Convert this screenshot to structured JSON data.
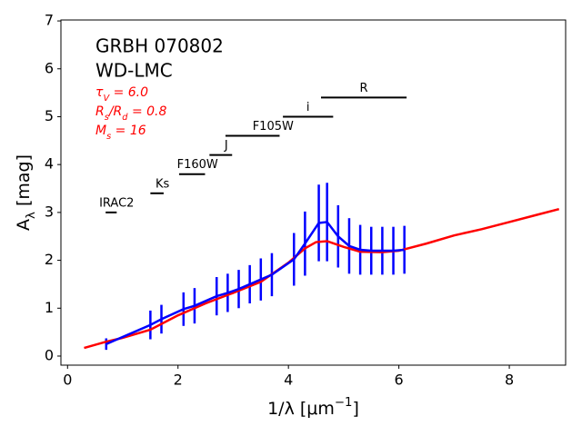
{
  "chart_data": {
    "type": "line",
    "title_lines": [
      "GRBH 070802",
      "WD-LMC"
    ],
    "parameters": [
      [
        "τ",
        "V",
        " = 6.0"
      ],
      [
        "R",
        "s",
        "/R",
        "d",
        " = 0.8"
      ],
      [
        "M",
        "s",
        " = 16"
      ]
    ],
    "parameter_color": "#ff0000",
    "ylabel": [
      "A",
      "λ",
      " [mag]"
    ],
    "xlabel": [
      "1/λ [μm",
      "−1",
      "]"
    ],
    "xlim": [
      -0.12,
      9.02
    ],
    "ylim": [
      -0.19,
      7.02
    ],
    "xticks": [
      0,
      2,
      4,
      6,
      8
    ],
    "yticks": [
      0,
      1,
      2,
      3,
      4,
      5,
      6,
      7
    ],
    "grid": false,
    "model": {
      "color": "#ff0000",
      "x": [
        0.3,
        0.7,
        1.0,
        1.5,
        2.0,
        2.5,
        3.0,
        3.5,
        4.0,
        4.3,
        4.5,
        4.7,
        5.0,
        5.3,
        5.7,
        6.0,
        6.5,
        7.0,
        7.5,
        8.0,
        8.5,
        8.9
      ],
      "values": [
        0.17,
        0.3,
        0.38,
        0.55,
        0.85,
        1.1,
        1.32,
        1.55,
        1.95,
        2.25,
        2.38,
        2.4,
        2.28,
        2.18,
        2.17,
        2.2,
        2.35,
        2.52,
        2.65,
        2.8,
        2.95,
        3.07
      ]
    },
    "data": {
      "color": "#0000ff",
      "x": [
        0.7,
        1.5,
        1.7,
        2.1,
        2.3,
        2.7,
        2.9,
        3.1,
        3.3,
        3.5,
        3.7,
        4.1,
        4.3,
        4.55,
        4.7,
        4.9,
        5.1,
        5.3,
        5.5,
        5.7,
        5.9,
        6.1
      ],
      "values": [
        0.25,
        0.65,
        0.77,
        0.98,
        1.05,
        1.25,
        1.32,
        1.4,
        1.5,
        1.6,
        1.7,
        2.02,
        2.35,
        2.78,
        2.8,
        2.5,
        2.3,
        2.22,
        2.2,
        2.2,
        2.2,
        2.22
      ],
      "errors": [
        0.12,
        0.3,
        0.3,
        0.35,
        0.37,
        0.4,
        0.4,
        0.4,
        0.4,
        0.44,
        0.45,
        0.55,
        0.67,
        0.8,
        0.82,
        0.65,
        0.58,
        0.52,
        0.5,
        0.5,
        0.5,
        0.5
      ]
    },
    "filters": [
      {
        "name": "IRAC2",
        "range": [
          0.69,
          0.89
        ],
        "value": 3.0
      },
      {
        "name": "Ks",
        "range": [
          1.5,
          1.74
        ],
        "value": 3.4
      },
      {
        "name": "F160W",
        "range": [
          2.02,
          2.49
        ],
        "value": 3.8
      },
      {
        "name": "J",
        "range": [
          2.57,
          2.98
        ],
        "value": 4.2
      },
      {
        "name": "F105W",
        "range": [
          2.86,
          3.84
        ],
        "value": 4.6
      },
      {
        "name": "i",
        "range": [
          3.9,
          4.81
        ],
        "value": 5.0
      },
      {
        "name": "R",
        "range": [
          4.59,
          6.14
        ],
        "value": 5.4
      }
    ]
  }
}
